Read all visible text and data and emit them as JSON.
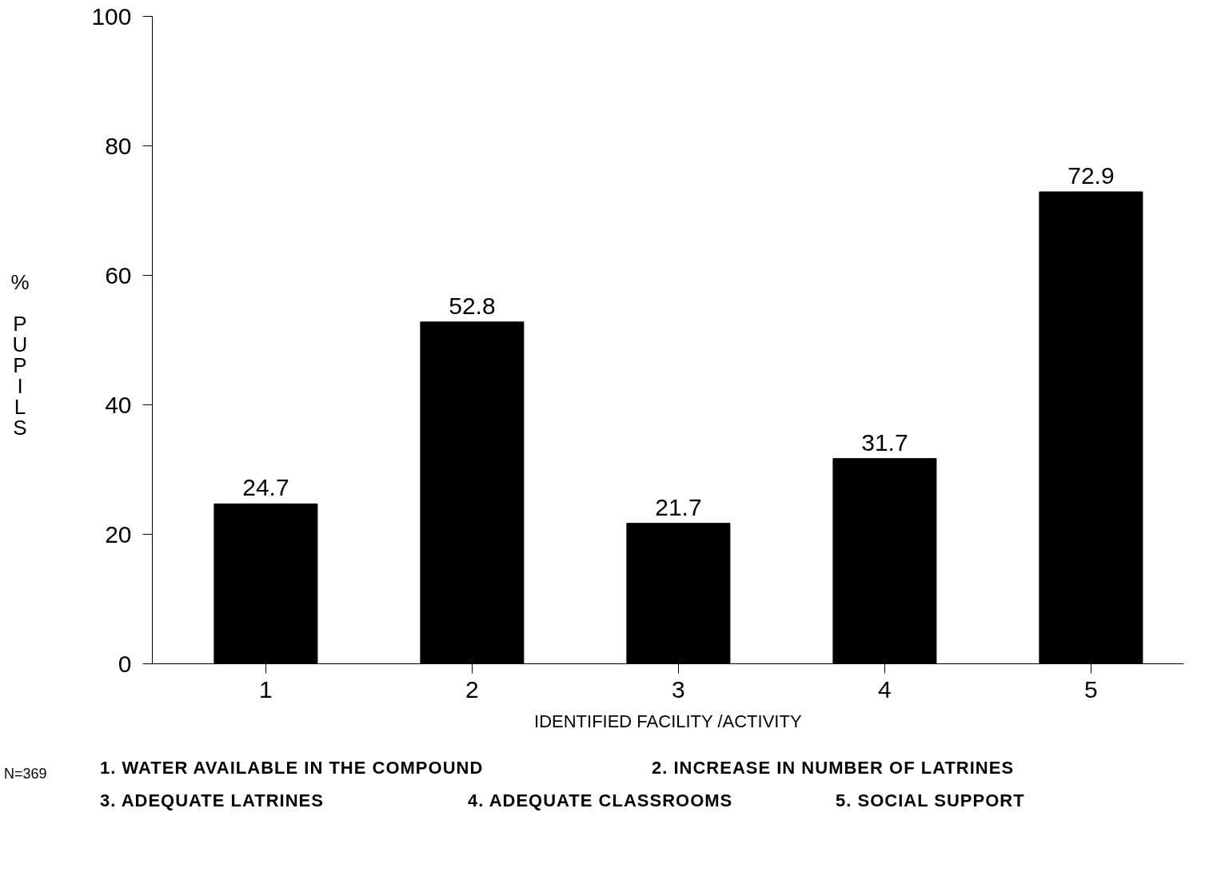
{
  "chart_data": {
    "type": "bar",
    "categories": [
      "1",
      "2",
      "3",
      "4",
      "5"
    ],
    "values": [
      24.7,
      52.8,
      21.7,
      31.7,
      72.9
    ],
    "color": "#000000",
    "data_labels": true,
    "xlabel": "IDENTIFIED FACILITY /ACTIVITY",
    "ylabel": "% PUPILS",
    "ylim": [
      0,
      100
    ],
    "yticks": [
      0,
      20,
      40,
      60,
      80,
      100
    ],
    "grid": false,
    "annotations": [
      "N=369",
      "1. WATER AVAILABLE IN THE COMPOUND",
      "2. INCREASE IN NUMBER OF LATRINES",
      "3. ADEQUATE LATRINES",
      "4. ADEQUATE CLASSROOMS",
      "5. SOCIAL SUPPORT"
    ]
  }
}
